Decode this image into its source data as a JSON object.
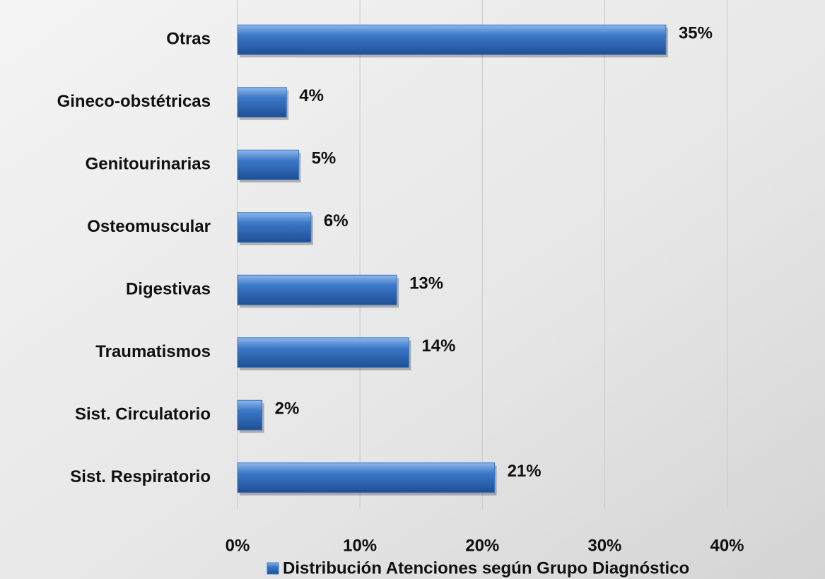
{
  "chart_data": {
    "type": "hbar",
    "categories": [
      "Sist. Respiratorio",
      "Sist. Circulatorio",
      "Traumatismos",
      "Digestivas",
      "Osteomuscular",
      "Genitourinarias",
      "Gineco-obstétricas",
      "Otras"
    ],
    "series": [
      {
        "name": "Distribución Atenciones según Grupo Diagnóstico",
        "color": "#3a78c8",
        "values": [
          21,
          2,
          14,
          13,
          6,
          5,
          4,
          35
        ],
        "value_labels": [
          "21%",
          "2%",
          "14%",
          "13%",
          "6%",
          "5%",
          "4%",
          "35%"
        ]
      }
    ],
    "xlim": [
      0,
      48
    ],
    "xticks": [
      {
        "value": 0,
        "label": "0%"
      },
      {
        "value": 10,
        "label": "10%"
      },
      {
        "value": 20,
        "label": "20%"
      },
      {
        "value": 30,
        "label": "30%"
      },
      {
        "value": 40,
        "label": "40%"
      }
    ],
    "grid": true,
    "legend": "bottom"
  }
}
